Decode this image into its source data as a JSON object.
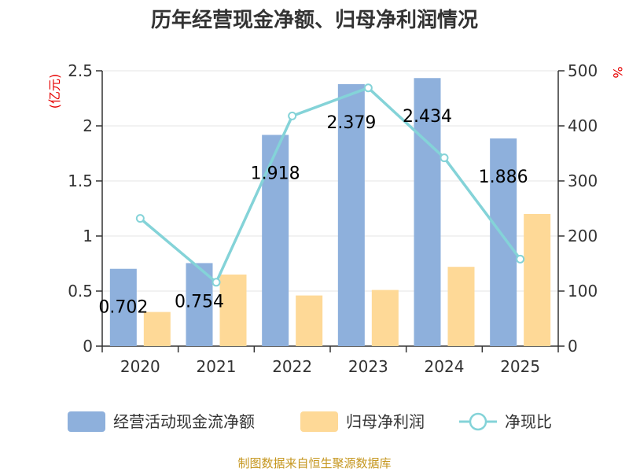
{
  "chart_data": {
    "type": "bar",
    "title": "历年经营现金净额、归母净利润情况",
    "categories": [
      "2020",
      "2021",
      "2022",
      "2023",
      "2024",
      "2025"
    ],
    "left_axis": {
      "unit": "(亿元)",
      "ylim": [
        0,
        2.5
      ],
      "ticks": [
        "0",
        "0.5",
        "1",
        "1.5",
        "2",
        "2.5"
      ],
      "tick_values": [
        0,
        0.5,
        1,
        1.5,
        2,
        2.5
      ]
    },
    "right_axis": {
      "unit": "%",
      "ylim": [
        0,
        500
      ],
      "ticks": [
        "0",
        "100",
        "200",
        "300",
        "400",
        "500"
      ],
      "tick_values": [
        0,
        100,
        200,
        300,
        400,
        500
      ]
    },
    "series": [
      {
        "name": "经营活动现金流净额",
        "kind": "bar",
        "axis": "left",
        "color": "#8eb0dc",
        "values": [
          0.702,
          0.754,
          1.918,
          2.379,
          2.434,
          1.886
        ],
        "labels": [
          "0.702",
          "0.754",
          "1.918",
          "2.379",
          "2.434",
          "1.886"
        ]
      },
      {
        "name": "归母净利润",
        "kind": "bar",
        "axis": "left",
        "color": "#fed997",
        "values": [
          0.31,
          0.65,
          0.46,
          0.51,
          0.72,
          1.2
        ]
      },
      {
        "name": "净现比",
        "kind": "line",
        "axis": "right",
        "color": "#84d3d8",
        "values": [
          232,
          116,
          418,
          469,
          342,
          158
        ]
      }
    ],
    "source": "制图数据来自恒生聚源数据库",
    "unit_color": "#e60000",
    "source_color": "#c5961e"
  }
}
